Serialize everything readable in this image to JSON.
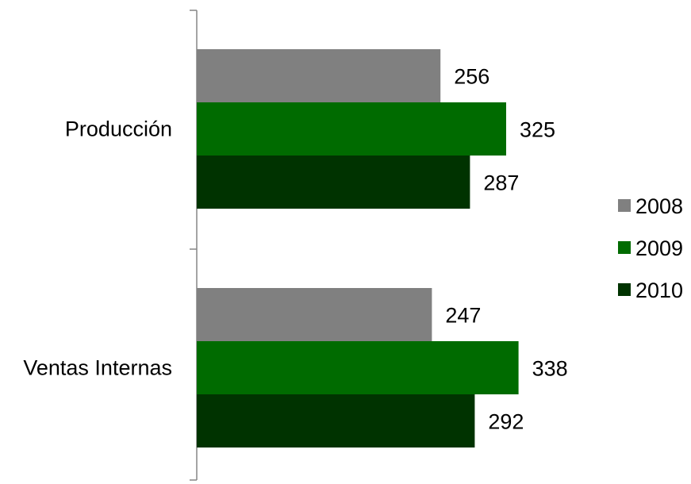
{
  "chart_data": {
    "type": "bar",
    "orientation": "horizontal",
    "categories": [
      "Producción",
      "Ventas Internas"
    ],
    "series": [
      {
        "name": "2008",
        "values": [
          256,
          247
        ],
        "color": "#808080"
      },
      {
        "name": "2009",
        "values": [
          325,
          338
        ],
        "color": "#006b00"
      },
      {
        "name": "2010",
        "values": [
          287,
          292
        ],
        "color": "#003300"
      }
    ],
    "title": "",
    "xlabel": "",
    "ylabel": "",
    "xlim": [
      0,
      500
    ],
    "grid": false,
    "legend": "right",
    "data_labels": true
  }
}
